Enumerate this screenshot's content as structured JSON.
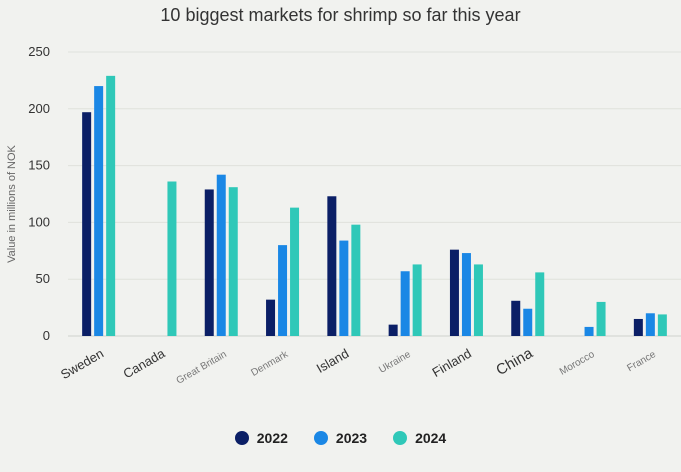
{
  "chart_data": {
    "type": "bar",
    "title": "10 biggest markets for shrimp so far this year",
    "ylabel": "Value in millions of NOK",
    "ylim": [
      0,
      250
    ],
    "yticks": [
      0,
      50,
      100,
      150,
      200,
      250
    ],
    "grid": true,
    "legend_position": "bottom",
    "categories": [
      "Sweden",
      "Canada",
      "Great Britain",
      "Denmark",
      "Island",
      "Ukraine",
      "Finland",
      "China",
      "Morocco",
      "France"
    ],
    "category_label_style": [
      "large",
      "large",
      "small",
      "small",
      "large",
      "small",
      "large",
      "xlarge",
      "small",
      "small"
    ],
    "series": [
      {
        "name": "2022",
        "color": "#0b1f66",
        "values": [
          197,
          0,
          129,
          32,
          123,
          10,
          76,
          31,
          0,
          15
        ]
      },
      {
        "name": "2023",
        "color": "#1a87e5",
        "values": [
          220,
          0,
          142,
          80,
          84,
          57,
          73,
          24,
          8,
          20
        ]
      },
      {
        "name": "2024",
        "color": "#2fc8b8",
        "values": [
          229,
          136,
          131,
          113,
          98,
          63,
          63,
          56,
          30,
          19
        ]
      }
    ]
  }
}
